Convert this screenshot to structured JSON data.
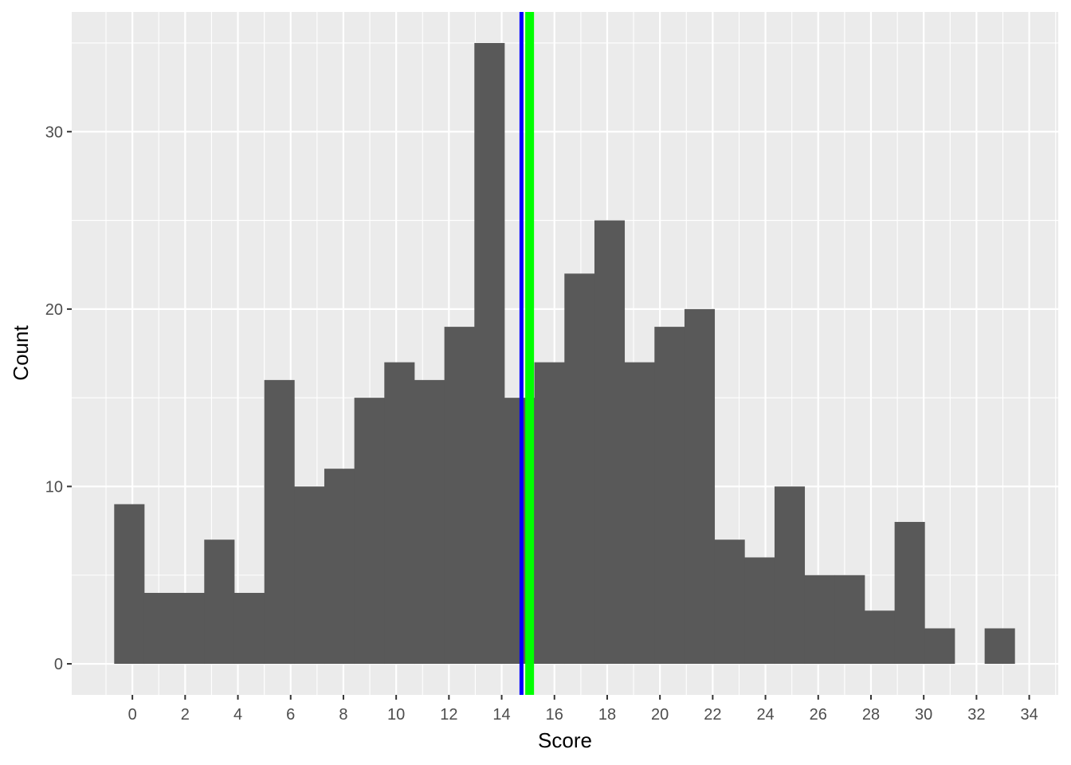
{
  "chart_data": {
    "type": "bar",
    "subtype": "histogram",
    "xlabel": "Score",
    "ylabel": "Count",
    "xlim": [
      -2.3,
      35.1
    ],
    "ylim": [
      -1.75,
      36.75
    ],
    "x_ticks": [
      0,
      2,
      4,
      6,
      8,
      10,
      12,
      14,
      16,
      18,
      20,
      22,
      24,
      26,
      28,
      30,
      32,
      34
    ],
    "y_ticks": [
      0,
      10,
      20,
      30
    ],
    "bin_width": 1.1379,
    "bin_starts": [
      -0.6897,
      0.4482,
      1.5861,
      2.724,
      3.8619,
      4.9998,
      6.1377,
      7.2756,
      8.4135,
      9.5514,
      10.6893,
      11.8272,
      12.9651,
      14.103,
      15.2409,
      16.3788,
      17.5167,
      18.6546,
      19.7925,
      20.9304,
      22.0683,
      23.2062,
      24.3441,
      25.482,
      26.6199,
      27.7578,
      28.8957,
      30.0336,
      31.1715,
      32.3094
    ],
    "counts": [
      9,
      4,
      4,
      7,
      4,
      16,
      10,
      11,
      15,
      17,
      16,
      19,
      35,
      15,
      17,
      22,
      25,
      17,
      19,
      20,
      7,
      6,
      10,
      5,
      5,
      3,
      8,
      2,
      0,
      2
    ],
    "vlines": [
      {
        "x": 14.75,
        "color": "#0000ff"
      },
      {
        "x": 15.06,
        "color": "#00ff00"
      }
    ],
    "grid": true,
    "colors": {
      "panel_background": "#ebebeb",
      "gridline": "#ffffff",
      "bar_fill": "#595959"
    }
  }
}
